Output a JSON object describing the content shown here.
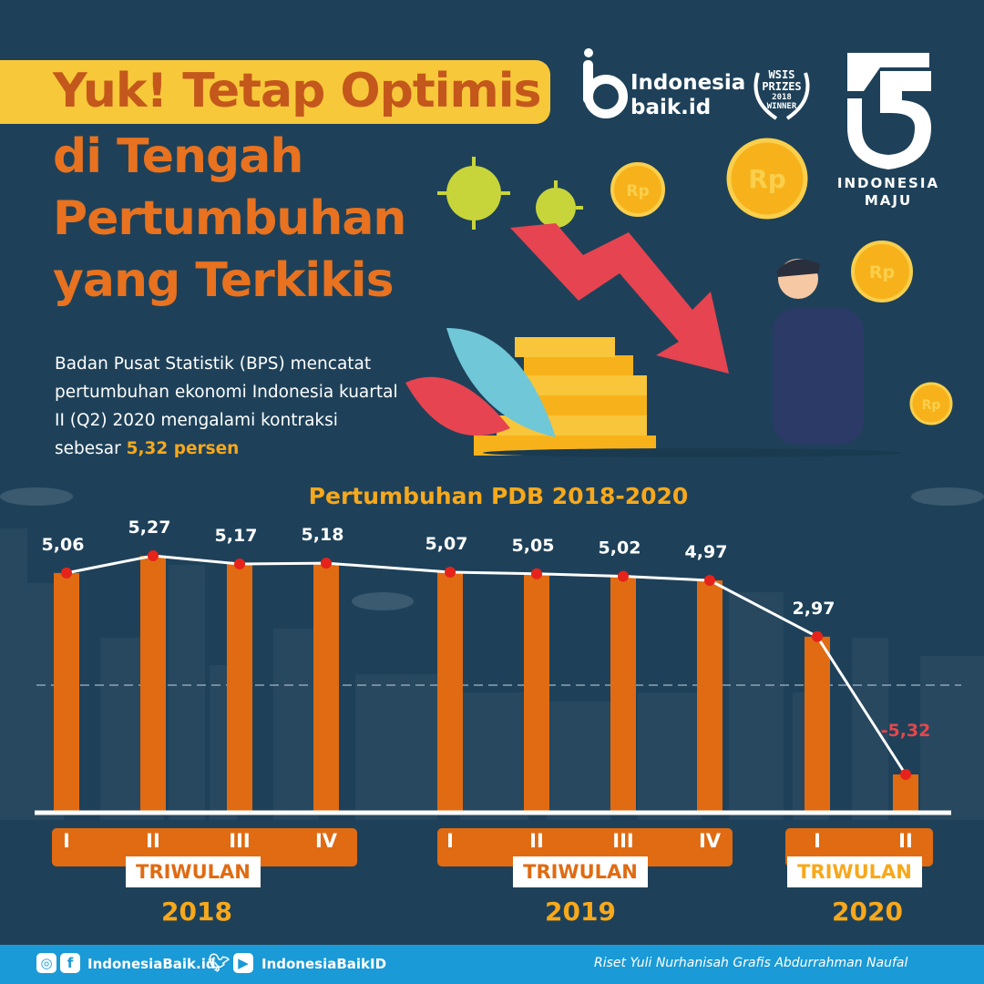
{
  "header": {
    "title_line1": "Yuk! Tetap Optimis",
    "title_line2": "di Tengah",
    "title_line3": "Pertumbuhan",
    "title_line4": "yang Terkikis",
    "brand_line1": "Indonesia",
    "brand_line2": "baik.id",
    "award_line1": "WSIS",
    "award_line2": "PRIZES",
    "award_line3": "2018",
    "award_line4": "WINNER",
    "ri_line1": "INDONESIA",
    "ri_line2": "MAJU",
    "coin_label": "Rp"
  },
  "intro": {
    "text_before": "Badan Pusat Statistik (BPS) mencatat pertumbuhan ekonomi Indonesia kuartal II (Q2) 2020 mengalami kontraksi sebesar ",
    "highlight": "5,32 persen"
  },
  "colors": {
    "background": "#1e4159",
    "bar": "#e06b12",
    "line": "#ffffff",
    "point": "#e5231b",
    "accent": "#f7a81b",
    "negative_label": "#e5474b",
    "footer": "#1a9ad6"
  },
  "chart_data": {
    "type": "bar",
    "title": "Pertumbuhan PDB 2018-2020",
    "xlabel": "TRIWULAN",
    "ylabel": "",
    "categories": [
      "I",
      "II",
      "III",
      "IV",
      "I",
      "II",
      "III",
      "IV",
      "I",
      "II"
    ],
    "groups": [
      {
        "year": "2018",
        "quarters": [
          "I",
          "II",
          "III",
          "IV"
        ]
      },
      {
        "year": "2019",
        "quarters": [
          "I",
          "II",
          "III",
          "IV"
        ]
      },
      {
        "year": "2020",
        "quarters": [
          "I",
          "II"
        ]
      }
    ],
    "values": [
      5.06,
      5.27,
      5.17,
      5.18,
      5.07,
      5.05,
      5.02,
      4.97,
      2.97,
      -5.32
    ],
    "value_labels": [
      "5,06",
      "5,27",
      "5,17",
      "5,18",
      "5,07",
      "5,05",
      "5,02",
      "4,97",
      "2,97",
      "-5,32"
    ],
    "overlay": "line",
    "grid": false,
    "legend": "none"
  },
  "footer": {
    "social_site": "IndonesiaBaik.id",
    "social_handle": "IndonesiaBaikID",
    "credits": "Riset Yuli Nurhanisah Grafis Abdurrahman Naufal"
  }
}
